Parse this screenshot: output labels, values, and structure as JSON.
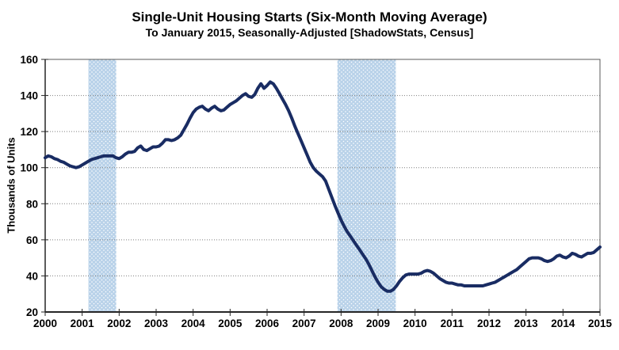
{
  "chart_data": {
    "type": "line",
    "title": "Single-Unit Housing Starts (Six-Month Moving Average)",
    "subtitle": "To January 2015, Seasonally-Adjusted [ShadowStats, Census]",
    "ylabel": "Thousands of Units",
    "xlabel": "",
    "xlim": [
      2000,
      2015
    ],
    "ylim": [
      20,
      160
    ],
    "x_ticks": [
      2000,
      2001,
      2002,
      2003,
      2004,
      2005,
      2006,
      2007,
      2008,
      2009,
      2010,
      2011,
      2012,
      2013,
      2014,
      2015
    ],
    "y_ticks": [
      20,
      40,
      60,
      80,
      100,
      120,
      140,
      160
    ],
    "grid": "horizontal-dotted",
    "legend": "none",
    "line_color": "#192c63",
    "recession_band_color": "#b9d2e9",
    "recession_bands": [
      {
        "start": 2001.17,
        "end": 2001.92
      },
      {
        "start": 2007.9,
        "end": 2009.48
      }
    ],
    "series": [
      {
        "name": "Single-unit housing starts, six-month moving average",
        "unit": "thousands of units",
        "x_start": 2000.0,
        "x_step_years": 0.0833333,
        "values": [
          105.5,
          106.5,
          106,
          105,
          104.5,
          103.5,
          103,
          102,
          101,
          100.5,
          100,
          100.5,
          101.5,
          102.5,
          103.5,
          104.5,
          105,
          105.5,
          106,
          106.5,
          106.5,
          106.5,
          106.5,
          105.5,
          105,
          106,
          107.5,
          108.5,
          108.5,
          109,
          111,
          112,
          110,
          109.5,
          110.5,
          111.5,
          111.5,
          112,
          113.5,
          115.5,
          115.5,
          115,
          115.5,
          116.5,
          118,
          121,
          124,
          127.5,
          130.5,
          132.5,
          133.5,
          134,
          132.5,
          131.5,
          133,
          134,
          132.5,
          131.5,
          132,
          133.5,
          135,
          136,
          137,
          138.5,
          140,
          141,
          139.5,
          139,
          140.5,
          144,
          146.5,
          144,
          145.5,
          147.5,
          146.5,
          144,
          141,
          138,
          135,
          131.5,
          127.5,
          123,
          119,
          115,
          111,
          107,
          103,
          100,
          98,
          96.5,
          95,
          92.5,
          88,
          83.5,
          79,
          75,
          71,
          67.5,
          64.5,
          62,
          59.5,
          57,
          54.5,
          52,
          49.5,
          46.5,
          43,
          39.5,
          36.5,
          34,
          32.5,
          31.5,
          31.5,
          32.5,
          34.5,
          37,
          39,
          40.5,
          41,
          41,
          41,
          41,
          41.5,
          42.5,
          43,
          42.5,
          41.5,
          40,
          38.5,
          37.5,
          36.5,
          36,
          36,
          35.5,
          35,
          35,
          34.5,
          34.5,
          34.5,
          34.5,
          34.5,
          34.5,
          34.5,
          35,
          35.5,
          36,
          36.5,
          37.5,
          38.5,
          39.5,
          40.5,
          41.5,
          42.5,
          43.5,
          45,
          46.5,
          48,
          49.5,
          50,
          50,
          50,
          49.5,
          48.5,
          48,
          48.5,
          49.5,
          51,
          51.5,
          50.5,
          50,
          51,
          52.5,
          52,
          51,
          50.5,
          51.5,
          52.5,
          52.5,
          53,
          54.5,
          56
        ]
      }
    ]
  }
}
